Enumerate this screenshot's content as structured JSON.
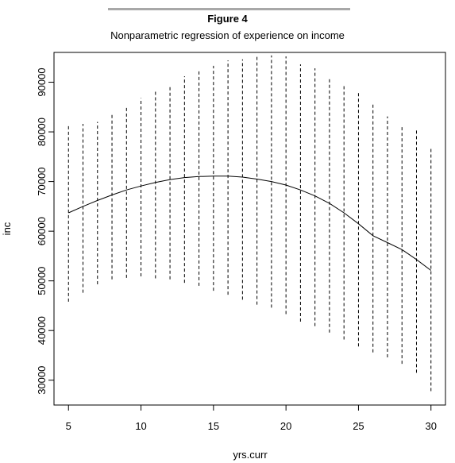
{
  "figure": {
    "label": "Figure 4",
    "title": "Nonparametric regression of experience on income"
  },
  "chart_data": {
    "type": "line",
    "title": "Nonparametric regression of experience on income",
    "xlabel": "yrs.curr",
    "ylabel": "inc",
    "xlim": [
      4,
      31
    ],
    "ylim": [
      25000,
      96000
    ],
    "x_ticks": [
      5,
      10,
      15,
      20,
      25,
      30
    ],
    "y_ticks": [
      30000,
      40000,
      50000,
      60000,
      70000,
      80000,
      90000
    ],
    "grid": false,
    "legend": "none",
    "series": [
      {
        "style": "solid",
        "x": [
          5,
          6,
          7,
          8,
          9,
          10,
          11,
          12,
          13,
          14,
          15,
          16,
          17,
          18,
          19,
          20,
          21,
          22,
          23,
          24,
          25,
          26,
          27,
          28,
          29,
          30
        ],
        "y": [
          63700,
          65000,
          66200,
          67300,
          68300,
          69100,
          69800,
          70400,
          70800,
          71000,
          71100,
          71100,
          70900,
          70500,
          70000,
          69300,
          68300,
          67100,
          65600,
          63700,
          61500,
          59100,
          57700,
          56300,
          54300,
          52100
        ]
      }
    ],
    "intervals": {
      "style": "dashed",
      "x": [
        5,
        6,
        7,
        8,
        9,
        10,
        11,
        12,
        13,
        14,
        15,
        16,
        17,
        18,
        19,
        20,
        21,
        22,
        23,
        24,
        25,
        26,
        27,
        28,
        29,
        30
      ],
      "lower": [
        45800,
        47600,
        49300,
        50300,
        50600,
        50900,
        50500,
        50300,
        49600,
        49000,
        48000,
        47200,
        46200,
        45200,
        44600,
        43300,
        41800,
        40900,
        39600,
        38200,
        36800,
        35600,
        34600,
        33300,
        31500,
        27800
      ],
      "upper": [
        81200,
        81600,
        82000,
        83600,
        85000,
        86800,
        88100,
        89200,
        91200,
        92400,
        93300,
        94400,
        94600,
        95100,
        95400,
        95200,
        93600,
        92800,
        90900,
        89500,
        87900,
        85800,
        83100,
        81000,
        80600,
        77000
      ]
    }
  }
}
